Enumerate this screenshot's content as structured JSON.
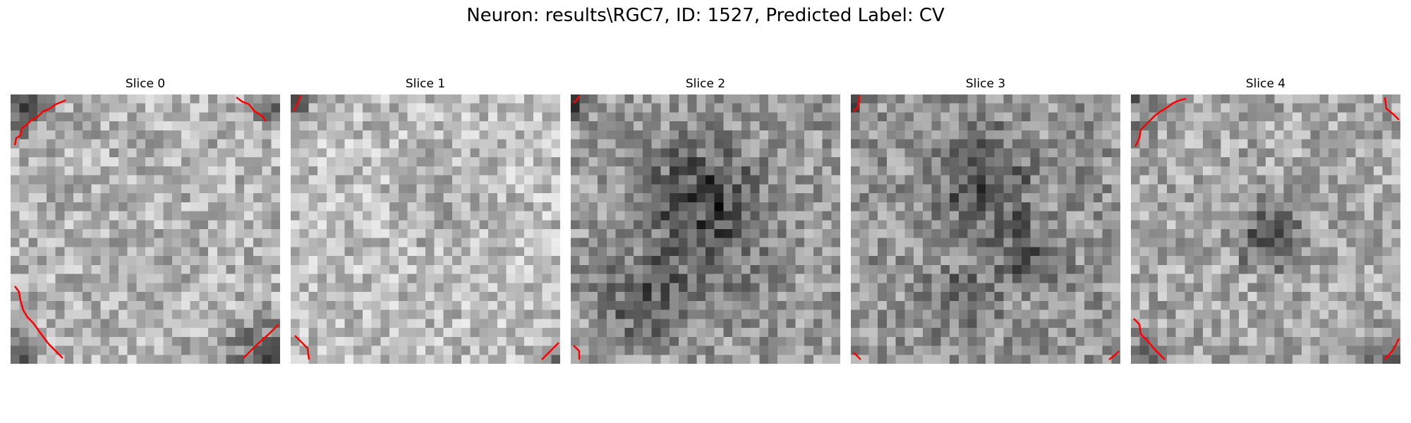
{
  "figure": {
    "title": "Neuron: results\\RGC7, ID: 1527, Predicted Label: CV",
    "contour_color": "#ff0000",
    "colormap": "gray"
  },
  "slices": [
    {
      "label": "Slice 0"
    },
    {
      "label": "Slice 1"
    },
    {
      "label": "Slice 2"
    },
    {
      "label": "Slice 3"
    },
    {
      "label": "Slice 4"
    }
  ]
}
